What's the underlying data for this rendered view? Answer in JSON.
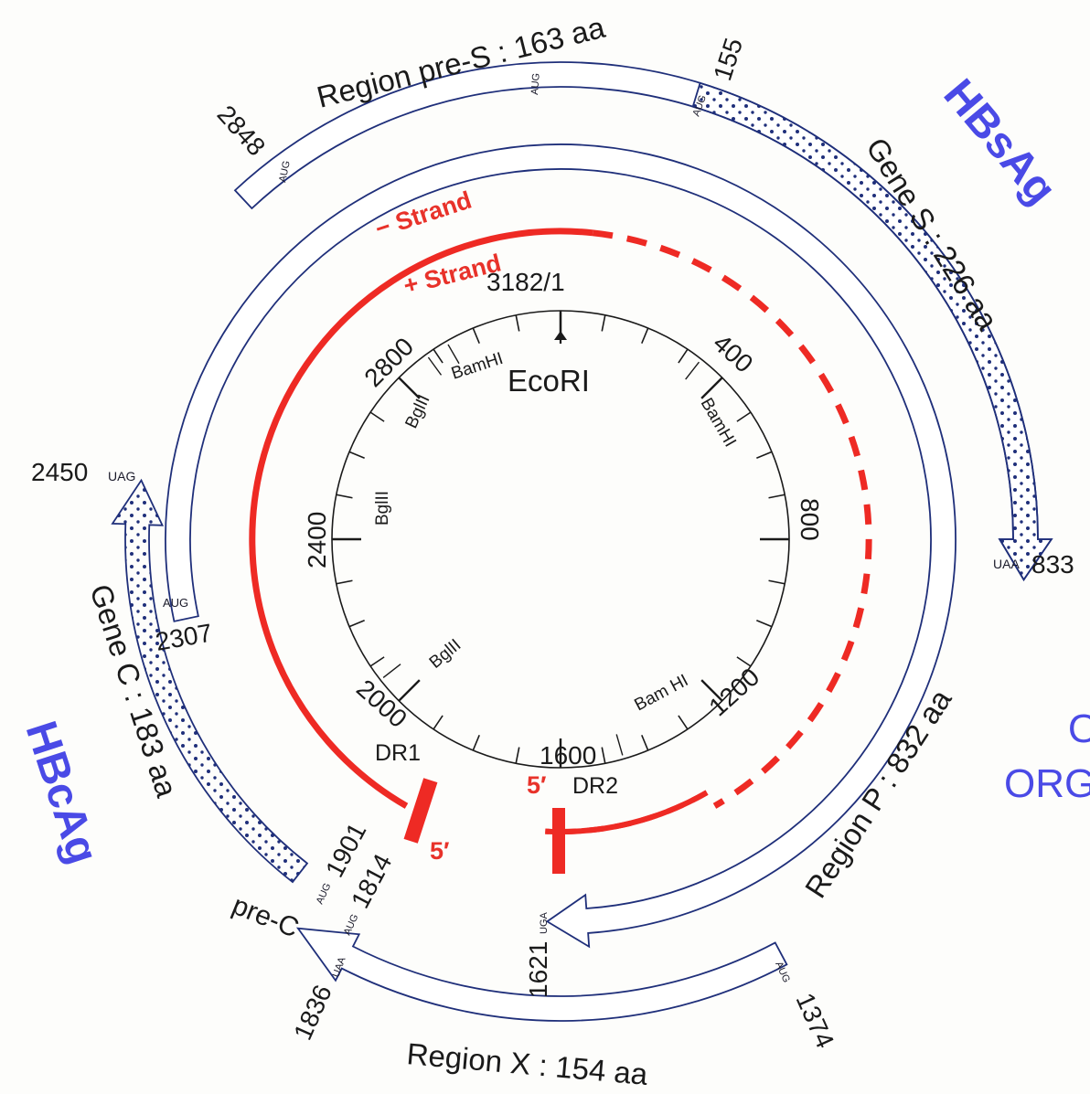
{
  "colors": {
    "outline": "#1f2f7a",
    "strand": "#ee2a24",
    "antigen": "#4a4ae6",
    "dots": "#1f2f7a",
    "ink": "#1a1a1a"
  },
  "scale": {
    "origin_label": "3182/1",
    "ticks": [
      "400",
      "800",
      "1200",
      "1600",
      "2000",
      "2400",
      "2800"
    ]
  },
  "sites": {
    "ecori": "EcoRI",
    "bamhi_1": "BamHI",
    "bamhi_2": "Bam HI",
    "bamhi_3": "BamHI",
    "bglii_1": "BglII",
    "bglii_2": "BglII",
    "bglii_3": "BglII"
  },
  "strands": {
    "minus": "− Strand",
    "plus": "+ Strand",
    "dr1": "DR1",
    "dr2": "DR2",
    "five_prime_a": "5′",
    "five_prime_b": "5′"
  },
  "genes": {
    "pre_s": "Region  pre-S : 163 aa",
    "gene_s": "Gene  S : 226 aa",
    "region_p": "Region  P : 832 aa",
    "region_x": "Region  X : 154 aa",
    "gene_c": "Gene  C : 183 aa",
    "pre_c": "pre-C"
  },
  "positions": {
    "p2848": "2848",
    "p155": "155",
    "p833": "833",
    "p2450": "2450",
    "p2307": "2307",
    "p1901": "1901",
    "p1814": "1814",
    "p1836": "1836",
    "p1621": "1621",
    "p1374": "1374"
  },
  "codons": {
    "aug": "AUG",
    "uaa": "UAA",
    "uag": "UAG",
    "uga": "UGA"
  },
  "antigens": {
    "hbsag": "HBsAg",
    "hbcag": "HBcAg",
    "orf_partial_1": "O",
    "orf_partial_2": "ORG"
  }
}
